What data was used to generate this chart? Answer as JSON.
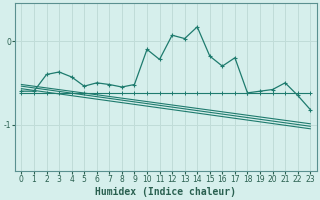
{
  "xlabel": "Humidex (Indice chaleur)",
  "background_color": "#d6efec",
  "grid_color": "#c0dcd8",
  "line_color": "#1e7b6e",
  "xlim": [
    -0.5,
    23.5
  ],
  "ylim": [
    -1.55,
    0.45
  ],
  "yticks": [
    0,
    -1
  ],
  "xticks": [
    0,
    1,
    2,
    3,
    4,
    5,
    6,
    7,
    8,
    9,
    10,
    11,
    12,
    13,
    14,
    15,
    16,
    17,
    18,
    19,
    20,
    21,
    22,
    23
  ],
  "line1_x": [
    0,
    1,
    2,
    3,
    4,
    5,
    6,
    7,
    8,
    9,
    10,
    11,
    12,
    13,
    14,
    15,
    16,
    17,
    18,
    19,
    20,
    21,
    22,
    23
  ],
  "line1_y": [
    -0.6,
    -0.6,
    -0.4,
    -0.37,
    -0.43,
    -0.54,
    -0.5,
    -0.52,
    -0.55,
    -0.52,
    -0.1,
    -0.22,
    0.07,
    0.03,
    0.17,
    -0.18,
    -0.3,
    -0.2,
    -0.62,
    -0.6,
    -0.58,
    -0.5,
    -0.65,
    -0.82
  ],
  "line2_x": [
    0,
    1,
    2,
    3,
    4,
    5,
    6,
    7,
    8,
    9,
    10,
    11,
    12,
    13,
    14,
    15,
    16,
    17,
    18,
    19,
    20,
    21,
    22,
    23
  ],
  "line2_y": [
    -0.62,
    -0.62,
    -0.62,
    -0.62,
    -0.62,
    -0.62,
    -0.62,
    -0.62,
    -0.62,
    -0.62,
    -0.62,
    -0.62,
    -0.62,
    -0.62,
    -0.62,
    -0.62,
    -0.62,
    -0.62,
    -0.62,
    -0.62,
    -0.62,
    -0.62,
    -0.62,
    -0.62
  ],
  "line3_x": [
    0,
    23
  ],
  "line3_y": [
    -0.57,
    -1.05
  ],
  "line4_x": [
    0,
    23
  ],
  "line4_y": [
    -0.52,
    -0.99
  ],
  "line5_x": [
    0,
    23
  ],
  "line5_y": [
    -0.54,
    -1.02
  ]
}
